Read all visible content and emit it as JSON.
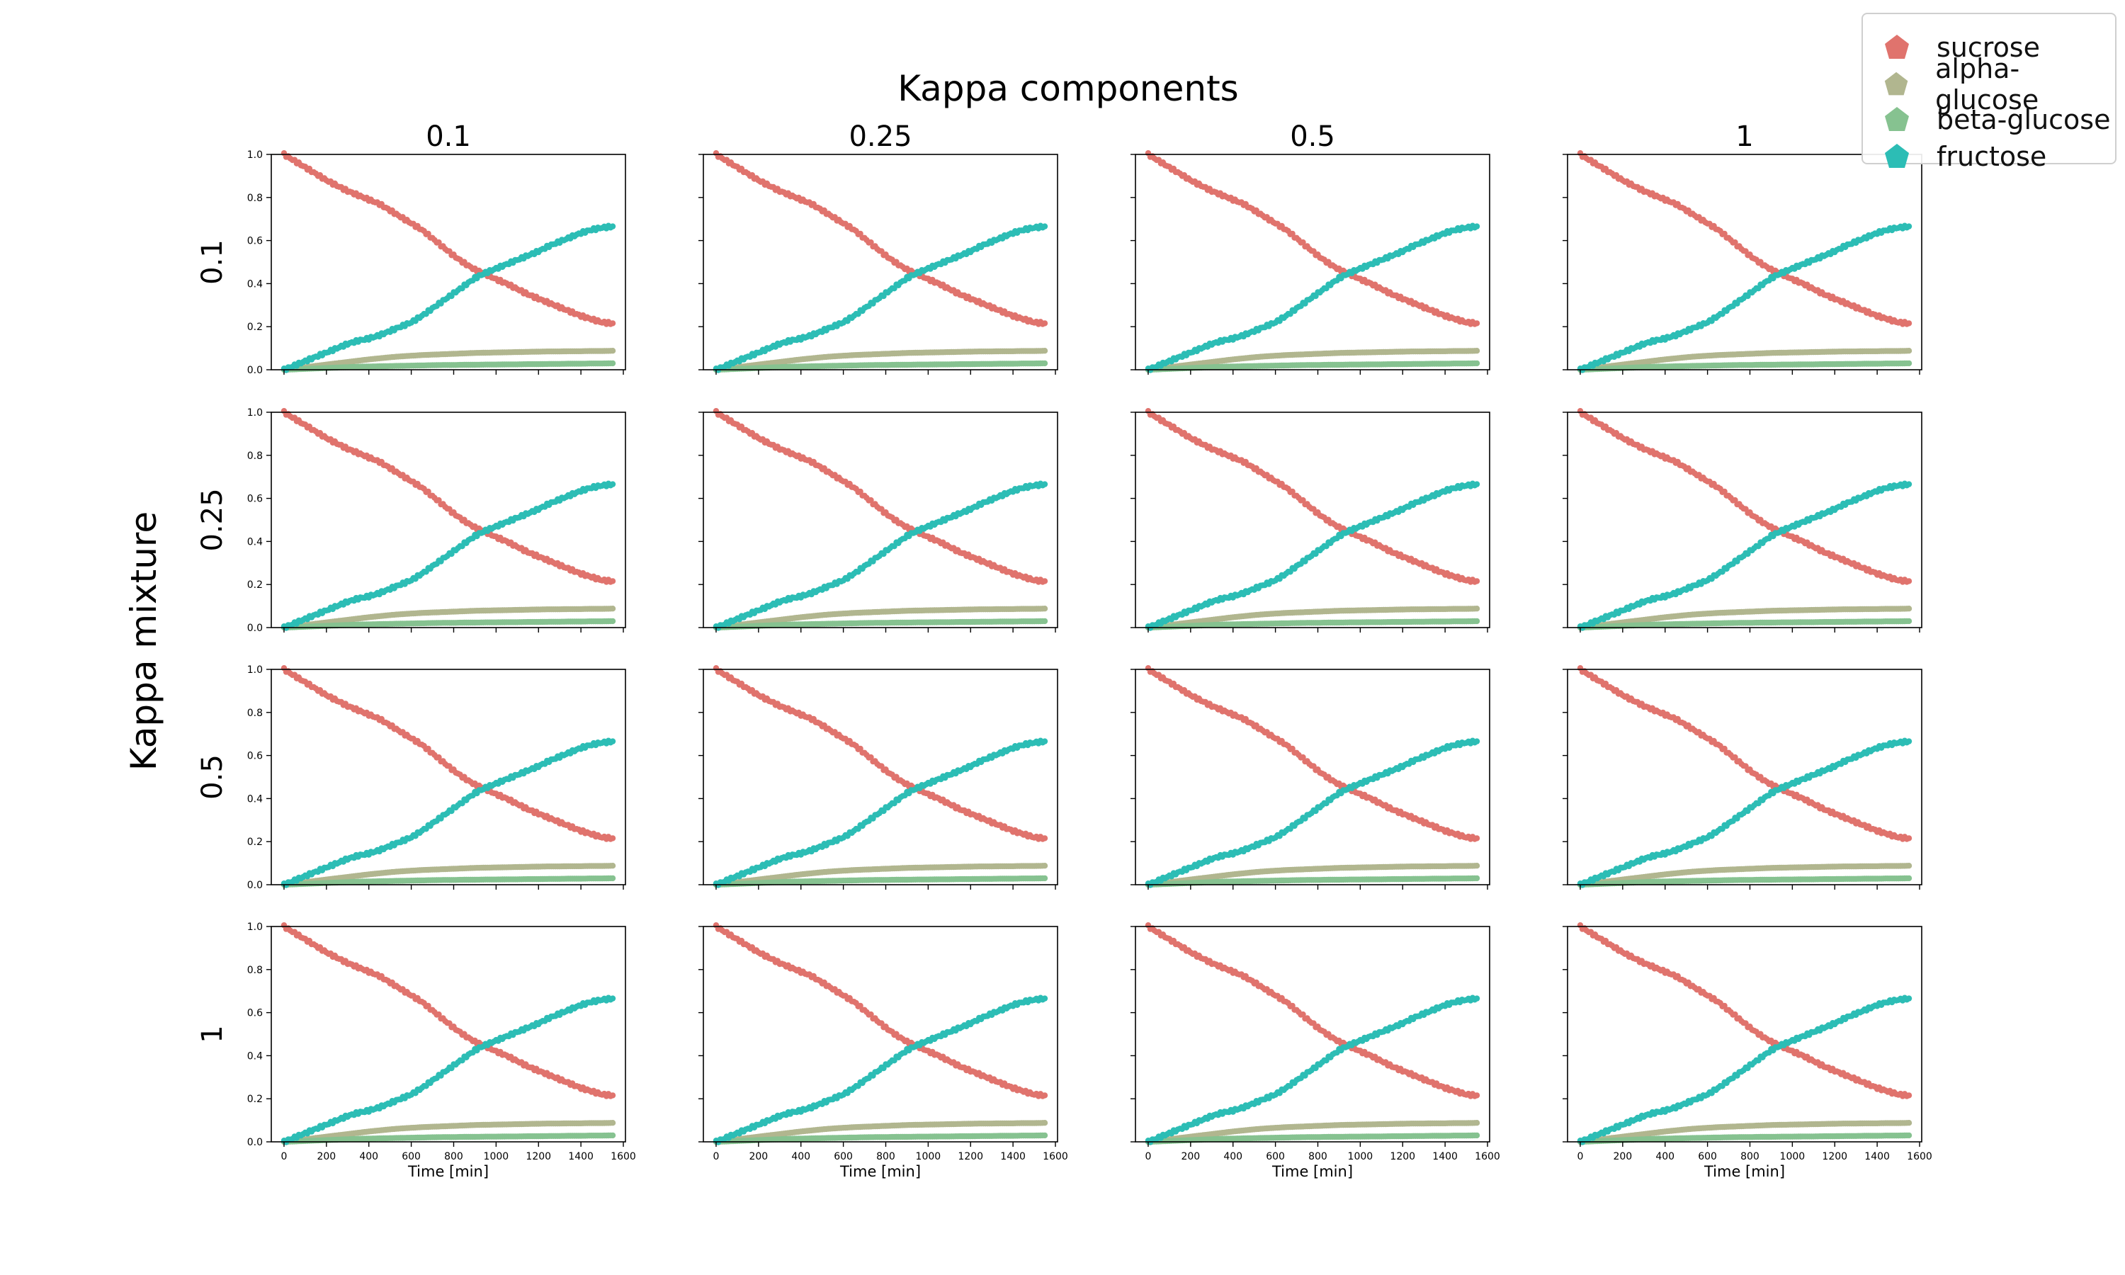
{
  "figure": {
    "suptitle": "Kappa components",
    "row_label": "Kappa mixture",
    "column_titles": [
      "0.1",
      "0.25",
      "0.5",
      "1"
    ],
    "row_titles": [
      "0.1",
      "0.25",
      "0.5",
      "1"
    ],
    "xlabel": "Time [min]"
  },
  "legend": {
    "placement": "top-right",
    "entries": [
      {
        "name": "sucrose",
        "color": "#e0736d",
        "icon": "pentagon-marker"
      },
      {
        "name": "alpha-glucose",
        "color": "#b1b68f",
        "icon": "pentagon-marker"
      },
      {
        "name": "beta-glucose",
        "color": "#86c290",
        "icon": "pentagon-marker"
      },
      {
        "name": "fructose",
        "color": "#2cbdb5",
        "icon": "pentagon-marker"
      }
    ]
  },
  "chart_data": {
    "type": "scatter",
    "layout": "4x4 grid of identical subplots",
    "xlim": [
      -60,
      1610
    ],
    "ylim": [
      0,
      1
    ],
    "xticks": [
      0,
      200,
      400,
      600,
      800,
      1000,
      1200,
      1400,
      1600
    ],
    "yticks": [
      0.0,
      0.2,
      0.4,
      0.6,
      0.8,
      1.0
    ],
    "grid": false,
    "x": [
      0,
      25,
      50,
      75,
      100,
      150,
      200,
      250,
      300,
      350,
      400,
      450,
      500,
      550,
      600,
      650,
      700,
      750,
      800,
      850,
      900,
      950,
      1000,
      1050,
      1100,
      1150,
      1200,
      1250,
      1300,
      1350,
      1400,
      1450,
      1500,
      1550
    ],
    "series": [
      {
        "name": "sucrose",
        "values": [
          1.0,
          0.985,
          0.97,
          0.955,
          0.94,
          0.91,
          0.88,
          0.855,
          0.83,
          0.81,
          0.79,
          0.77,
          0.74,
          0.71,
          0.68,
          0.65,
          0.61,
          0.57,
          0.53,
          0.495,
          0.465,
          0.445,
          0.42,
          0.4,
          0.375,
          0.35,
          0.33,
          0.31,
          0.29,
          0.27,
          0.25,
          0.235,
          0.22,
          0.215
        ]
      },
      {
        "name": "alpha-glucose",
        "values": [
          0.0,
          0.003,
          0.006,
          0.009,
          0.012,
          0.018,
          0.024,
          0.03,
          0.036,
          0.042,
          0.048,
          0.053,
          0.058,
          0.062,
          0.065,
          0.068,
          0.07,
          0.072,
          0.074,
          0.076,
          0.078,
          0.079,
          0.08,
          0.081,
          0.082,
          0.083,
          0.084,
          0.085,
          0.085,
          0.086,
          0.086,
          0.087,
          0.087,
          0.088
        ]
      },
      {
        "name": "beta-glucose",
        "values": [
          0.0,
          0.001,
          0.002,
          0.003,
          0.004,
          0.006,
          0.008,
          0.01,
          0.012,
          0.014,
          0.015,
          0.016,
          0.017,
          0.018,
          0.019,
          0.02,
          0.021,
          0.022,
          0.022,
          0.023,
          0.023,
          0.024,
          0.024,
          0.025,
          0.025,
          0.026,
          0.026,
          0.027,
          0.027,
          0.028,
          0.028,
          0.029,
          0.029,
          0.03
        ]
      },
      {
        "name": "fructose",
        "values": [
          0.0,
          0.01,
          0.02,
          0.03,
          0.04,
          0.06,
          0.08,
          0.1,
          0.12,
          0.135,
          0.145,
          0.16,
          0.18,
          0.2,
          0.22,
          0.25,
          0.285,
          0.32,
          0.355,
          0.39,
          0.425,
          0.45,
          0.47,
          0.49,
          0.51,
          0.53,
          0.55,
          0.575,
          0.595,
          0.615,
          0.635,
          0.65,
          0.66,
          0.665
        ]
      }
    ]
  }
}
